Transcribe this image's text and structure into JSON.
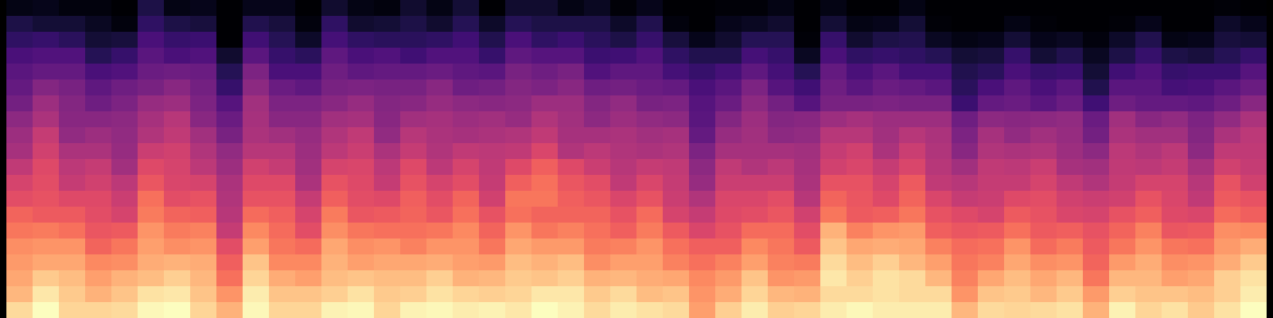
{
  "chart_data": {
    "type": "heatmap",
    "color": "magma",
    "tick_labels": false,
    "zlim": [
      -80,
      0
    ],
    "cells": [
      [
        -77,
        -76,
        -78,
        -78,
        -80,
        -70,
        -77,
        -76,
        -80,
        -76,
        -76,
        -80,
        -73,
        -77,
        -78,
        -73,
        -77,
        -72,
        -80,
        -73,
        -73,
        -77,
        -75,
        -79,
        -76,
        -80,
        -80,
        -79,
        -79,
        -77,
        -80,
        -77,
        -80,
        -80,
        -77,
        -80,
        -80,
        -80,
        -80,
        -80,
        -80,
        -80,
        -80,
        -80,
        -80,
        -80,
        -79,
        -80
      ],
      [
        -70,
        -72,
        -72,
        -75,
        -78,
        -66,
        -70,
        -71,
        -80,
        -69,
        -71,
        -78,
        -66,
        -73,
        -72,
        -70,
        -73,
        -68,
        -74,
        -68,
        -70,
        -70,
        -70,
        -74,
        -69,
        -78,
        -80,
        -76,
        -75,
        -73,
        -80,
        -72,
        -77,
        -76,
        -72,
        -79,
        -80,
        -80,
        -77,
        -79,
        -80,
        -80,
        -79,
        -76,
        -80,
        -80,
        -74,
        -76
      ],
      [
        -66,
        -65,
        -67,
        -72,
        -71,
        -61,
        -65,
        -64,
        -80,
        -63,
        -68,
        -74,
        -62,
        -66,
        -67,
        -67,
        -66,
        -63,
        -69,
        -61,
        -66,
        -64,
        -67,
        -70,
        -65,
        -71,
        -76,
        -73,
        -68,
        -68,
        -79,
        -65,
        -73,
        -70,
        -69,
        -75,
        -77,
        -76,
        -72,
        -76,
        -75,
        -78,
        -74,
        -69,
        -77,
        -76,
        -71,
        -72
      ],
      [
        -61,
        -60,
        -60,
        -68,
        -65,
        -58,
        -61,
        -60,
        -73,
        -58,
        -65,
        -67,
        -57,
        -61,
        -60,
        -63,
        -60,
        -60,
        -65,
        -57,
        -59,
        -59,
        -64,
        -63,
        -60,
        -66,
        -69,
        -69,
        -62,
        -65,
        -75,
        -61,
        -66,
        -65,
        -66,
        -68,
        -72,
        -71,
        -65,
        -72,
        -69,
        -75,
        -70,
        -65,
        -70,
        -71,
        -68,
        -65
      ],
      [
        -58,
        -56,
        -56,
        -61,
        -60,
        -55,
        -54,
        -55,
        -68,
        -51,
        -61,
        -61,
        -54,
        -57,
        -56,
        -56,
        -55,
        -57,
        -58,
        -52,
        -54,
        -52,
        -60,
        -57,
        -57,
        -62,
        -65,
        -62,
        -57,
        -62,
        -68,
        -56,
        -61,
        -58,
        -62,
        -62,
        -69,
        -67,
        -61,
        -65,
        -64,
        -72,
        -63,
        -60,
        -65,
        -64,
        -64,
        -59
      ],
      [
        -56,
        -50,
        -52,
        -57,
        -54,
        -52,
        -49,
        -53,
        -65,
        -48,
        -55,
        -57,
        -52,
        -51,
        -52,
        -52,
        -49,
        -54,
        -53,
        -50,
        -51,
        -49,
        -54,
        -53,
        -55,
        -56,
        -61,
        -58,
        -51,
        -59,
        -63,
        -54,
        -58,
        -55,
        -56,
        -58,
        -67,
        -61,
        -57,
        -61,
        -58,
        -69,
        -58,
        -58,
        -62,
        -61,
        -58,
        -55
      ],
      [
        -53,
        -45,
        -50,
        -54,
        -51,
        -46,
        -45,
        -51,
        -59,
        -44,
        -51,
        -51,
        -49,
        -46,
        -50,
        -49,
        -46,
        -48,
        -49,
        -48,
        -45,
        -45,
        -50,
        -47,
        -52,
        -51,
        -59,
        -55,
        -48,
        -53,
        -59,
        -52,
        -52,
        -51,
        -52,
        -52,
        -64,
        -56,
        -55,
        -58,
        -55,
        -63,
        -54,
        -56,
        -56,
        -57,
        -54,
        -49
      ],
      [
        -48,
        -42,
        -49,
        -49,
        -48,
        -43,
        -40,
        -49,
        -55,
        -43,
        -49,
        -49,
        -44,
        -43,
        -49,
        -44,
        -43,
        -45,
        -44,
        -46,
        -41,
        -44,
        -48,
        -45,
        -47,
        -48,
        -58,
        -50,
        -45,
        -50,
        -49,
        -45,
        -43,
        -45,
        -45,
        -45,
        -54,
        -48,
        -49,
        -48,
        -47,
        -55,
        -44,
        -49,
        -47,
        -51,
        -47,
        -42
      ],
      [
        -45,
        -37,
        -47,
        -45,
        -47,
        -41,
        -38,
        -44,
        -52,
        -42,
        -44,
        -46,
        -41,
        -38,
        -47,
        -40,
        -42,
        -43,
        -42,
        -41,
        -38,
        -43,
        -43,
        -42,
        -44,
        -43,
        -56,
        -46,
        -44,
        -48,
        -47,
        -40,
        -40,
        -44,
        -40,
        -42,
        -51,
        -43,
        -47,
        -44,
        -46,
        -53,
        -42,
        -44,
        -44,
        -50,
        -42,
        -39
      ],
      [
        -43,
        -35,
        -42,
        -42,
        -46,
        -36,
        -35,
        -41,
        -47,
        -40,
        -40,
        -45,
        -39,
        -36,
        -42,
        -37,
        -41,
        -38,
        -39,
        -38,
        -33,
        -41,
        -39,
        -41,
        -42,
        -41,
        -51,
        -43,
        -43,
        -43,
        -44,
        -37,
        -35,
        -42,
        -36,
        -41,
        -49,
        -41,
        -42,
        -41,
        -45,
        -48,
        -39,
        -41,
        -39,
        -48,
        -38,
        -38
      ],
      [
        -38,
        -32,
        -39,
        -37,
        -44,
        -32,
        -34,
        -39,
        -45,
        -35,
        -37,
        -44,
        -34,
        -33,
        -39,
        -32,
        -39,
        -34,
        -38,
        -32,
        -27,
        -32,
        -36,
        -40,
        -37,
        -38,
        -48,
        -38,
        -41,
        -39,
        -43,
        -35,
        -33,
        -37,
        -33,
        -40,
        -44,
        -38,
        -39,
        -36,
        -43,
        -44,
        -38,
        -39,
        -37,
        -43,
        -35,
        -37
      ],
      [
        -34,
        -31,
        -37,
        -35,
        -39,
        -29,
        -33,
        -34,
        -42,
        -32,
        -32,
        -42,
        -30,
        -32,
        -37,
        -30,
        -34,
        -31,
        -37,
        -27,
        -24,
        -29,
        -31,
        -38,
        -33,
        -37,
        -46,
        -36,
        -36,
        -36,
        -42,
        -30,
        -30,
        -34,
        -28,
        -38,
        -40,
        -37,
        -37,
        -34,
        -38,
        -41,
        -37,
        -34,
        -34,
        -40,
        -30,
        -35
      ],
      [
        -31,
        -30,
        -32,
        -32,
        -36,
        -24,
        -31,
        -30,
        -41,
        -30,
        -30,
        -37,
        -27,
        -31,
        -32,
        -27,
        -31,
        -26,
        -35,
        -23,
        -23,
        -27,
        -29,
        -33,
        -30,
        -36,
        -41,
        -33,
        -33,
        -31,
        -40,
        -26,
        -29,
        -32,
        -26,
        -33,
        -37,
        -36,
        -32,
        -31,
        -35,
        -36,
        -35,
        -30,
        -33,
        -38,
        -28,
        -30
      ],
      [
        -26,
        -28,
        -28,
        -31,
        -34,
        -22,
        -26,
        -27,
        -40,
        -25,
        -27,
        -34,
        -22,
        -29,
        -28,
        -26,
        -29,
        -24,
        -30,
        -24,
        -26,
        -26,
        -26,
        -30,
        -25,
        -34,
        -37,
        -32,
        -31,
        -29,
        -35,
        -23,
        -28,
        -27,
        -23,
        -30,
        -32,
        -34,
        -28,
        -30,
        -33,
        -34,
        -30,
        -27,
        -32,
        -33,
        -25,
        -27
      ],
      [
        -23,
        -22,
        -24,
        -29,
        -28,
        -18,
        -22,
        -21,
        -37,
        -20,
        -25,
        -31,
        -19,
        -23,
        -24,
        -24,
        -23,
        -20,
        -26,
        -18,
        -23,
        -21,
        -24,
        -27,
        -22,
        -28,
        -33,
        -30,
        -25,
        -25,
        -31,
        -13,
        -21,
        -18,
        -17,
        -27,
        -29,
        -28,
        -24,
        -28,
        -27,
        -30,
        -26,
        -21,
        -29,
        -28,
        -19,
        -20
      ],
      [
        -19,
        -18,
        -18,
        -26,
        -23,
        -16,
        -19,
        -18,
        -31,
        -16,
        -23,
        -25,
        -15,
        -19,
        -18,
        -21,
        -18,
        -18,
        -23,
        -15,
        -17,
        -17,
        -22,
        -21,
        -18,
        -24,
        -27,
        -27,
        -20,
        -23,
        -28,
        -10,
        -15,
        -14,
        -15,
        -21,
        -25,
        -24,
        -18,
        -25,
        -22,
        -28,
        -23,
        -18,
        -23,
        -24,
        -17,
        -14
      ],
      [
        -17,
        -15,
        -15,
        -20,
        -19,
        -14,
        -13,
        -14,
        -27,
        -10,
        -20,
        -20,
        -13,
        -16,
        -15,
        -15,
        -14,
        -16,
        -17,
        -11,
        -13,
        -11,
        -19,
        -16,
        -16,
        -21,
        -24,
        -21,
        -16,
        -21,
        -22,
        -6,
        -11,
        -8,
        -12,
        -16,
        -23,
        -21,
        -15,
        -19,
        -18,
        -26,
        -17,
        -14,
        -19,
        -18,
        -14,
        -9
      ],
      [
        -15,
        -9,
        -11,
        -16,
        -13,
        -11,
        -8,
        -12,
        -24,
        -7,
        -14,
        -16,
        -11,
        -10,
        -11,
        -11,
        -8,
        -13,
        -12,
        -9,
        -10,
        -8,
        -13,
        -12,
        -14,
        -15,
        -20,
        -17,
        -10,
        -18,
        -17,
        -4,
        -8,
        -5,
        -6,
        -12,
        -21,
        -15,
        -11,
        -15,
        -12,
        -23,
        -12,
        -12,
        -16,
        -15,
        -8,
        -5
      ],
      [
        -12,
        -4,
        -9,
        -13,
        -10,
        -5,
        -4,
        -10,
        -18,
        -3,
        -10,
        -10,
        -8,
        -5,
        -9,
        -8,
        -5,
        -7,
        -8,
        -7,
        -4,
        -4,
        -9,
        -6,
        -11,
        -10,
        -18,
        -14,
        -7,
        -12,
        -13,
        -6,
        -6,
        -5,
        -6,
        -6,
        -18,
        -10,
        -9,
        -12,
        -9,
        -17,
        -8,
        -10,
        -10,
        -11,
        -8,
        -3
      ],
      [
        -6,
        0,
        -7,
        -7,
        -6,
        -1,
        0,
        -7,
        -13,
        -1,
        -7,
        -7,
        -2,
        -1,
        -7,
        -2,
        -1,
        -3,
        -2,
        -4,
        0,
        -2,
        -6,
        -3,
        -5,
        -6,
        -16,
        -8,
        -3,
        -8,
        -7,
        -3,
        -1,
        -3,
        -3,
        -3,
        -12,
        -6,
        -7,
        -6,
        -5,
        -13,
        -2,
        -7,
        -5,
        -9,
        -5,
        0
      ]
    ]
  }
}
